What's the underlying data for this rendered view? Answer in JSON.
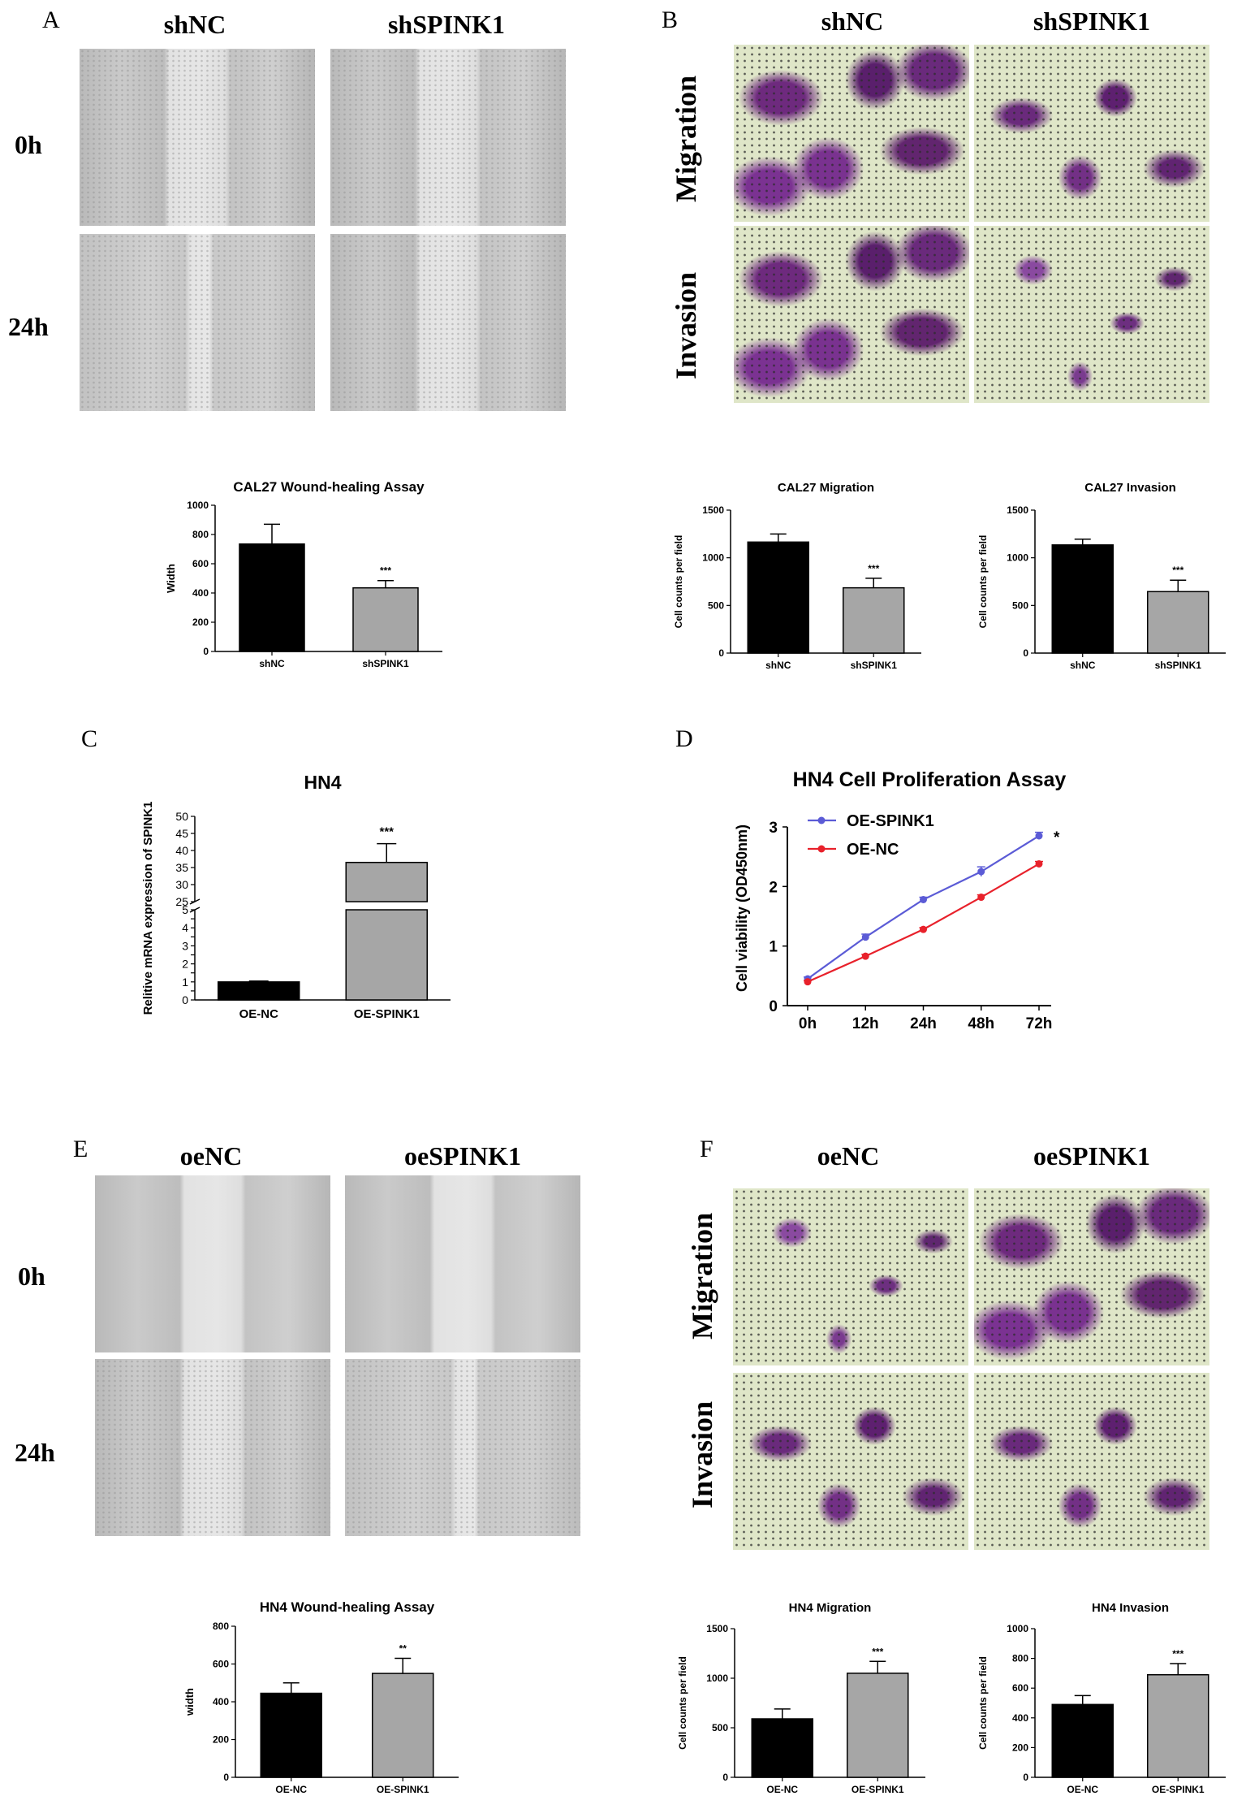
{
  "panels": {
    "A": {
      "letter": "A",
      "col1": "shNC",
      "col2": "shSPINK1",
      "row1": "0h",
      "row2": "24h"
    },
    "B": {
      "letter": "B",
      "col1": "shNC",
      "col2": "shSPINK1",
      "row1": "Migration",
      "row2": "Invasion"
    },
    "C": {
      "letter": "C"
    },
    "D": {
      "letter": "D"
    },
    "E": {
      "letter": "E",
      "col1": "oeNC",
      "col2": "oeSPINK1",
      "row1": "0h",
      "row2": "24h"
    },
    "F": {
      "letter": "F",
      "col1": "oeNC",
      "col2": "oeSPINK1",
      "row1": "Migration",
      "row2": "Invasion"
    }
  },
  "chart_data": [
    {
      "id": "cal27-wound",
      "type": "bar",
      "title": "CAL27 Wound-healing Assay",
      "ylabel": "Width",
      "categories": [
        "shNC",
        "shSPINK1"
      ],
      "values": [
        735,
        435
      ],
      "errors": [
        135,
        50
      ],
      "significance": [
        "",
        "***"
      ],
      "ylim": [
        0,
        1000
      ],
      "yticks": [
        0,
        200,
        400,
        600,
        800,
        1000
      ],
      "colors": [
        "#000000",
        "#a6a6a6"
      ]
    },
    {
      "id": "cal27-migration",
      "type": "bar",
      "title": "CAL27 Migration",
      "ylabel": "Cell counts per field",
      "categories": [
        "shNC",
        "shSPINK1"
      ],
      "values": [
        1165,
        685
      ],
      "errors": [
        85,
        100
      ],
      "significance": [
        "",
        "***"
      ],
      "ylim": [
        0,
        1500
      ],
      "yticks": [
        0,
        500,
        1000,
        1500
      ],
      "colors": [
        "#000000",
        "#a6a6a6"
      ]
    },
    {
      "id": "cal27-invasion",
      "type": "bar",
      "title": "CAL27 Invasion",
      "ylabel": "Cell counts per field",
      "categories": [
        "shNC",
        "shSPINK1"
      ],
      "values": [
        1135,
        645
      ],
      "errors": [
        60,
        120
      ],
      "significance": [
        "",
        "***"
      ],
      "ylim": [
        0,
        1500
      ],
      "yticks": [
        0,
        500,
        1000,
        1500
      ],
      "colors": [
        "#000000",
        "#a6a6a6"
      ]
    },
    {
      "id": "hn4-mrna",
      "type": "bar",
      "title": "HN4",
      "ylabel": "Relitive mRNA expression of SPINK1",
      "categories": [
        "OE-NC",
        "OE-SPINK1"
      ],
      "values": [
        1.0,
        36.5
      ],
      "errors": [
        0.05,
        5.5
      ],
      "significance": [
        "",
        "***"
      ],
      "axis_break": [
        5,
        25
      ],
      "ylim": [
        0,
        50
      ],
      "yticks_lower": [
        0,
        0.5,
        1,
        1.5,
        2,
        2.5,
        3,
        3.5,
        4,
        4.5,
        5
      ],
      "ytick_labels_lower": [
        "0",
        "",
        "1",
        "",
        "2",
        "",
        "3",
        "",
        "4",
        "",
        "5"
      ],
      "yticks_upper": [
        25,
        30,
        35,
        40,
        45,
        50
      ],
      "colors": [
        "#000000",
        "#a6a6a6"
      ]
    },
    {
      "id": "hn4-proliferation",
      "type": "line",
      "title": "HN4 Cell Proliferation Assay",
      "ylabel": "Cell viability (OD450nm)",
      "categories": [
        "0h",
        "12h",
        "24h",
        "48h",
        "72h"
      ],
      "series": [
        {
          "name": "OE-SPINK1",
          "values": [
            0.45,
            1.15,
            1.78,
            2.25,
            2.85
          ],
          "errors": [
            0.03,
            0.05,
            0.04,
            0.08,
            0.06
          ],
          "color": "#5b5bd6"
        },
        {
          "name": "OE-NC",
          "values": [
            0.4,
            0.83,
            1.28,
            1.82,
            2.38
          ],
          "errors": [
            0.02,
            0.03,
            0.03,
            0.04,
            0.04
          ],
          "color": "#e8212b"
        }
      ],
      "significance": "*",
      "ylim": [
        0,
        3
      ],
      "yticks": [
        0,
        1,
        2,
        3
      ],
      "legend": "top-left"
    },
    {
      "id": "hn4-wound",
      "type": "bar",
      "title": "HN4 Wound-healing Assay",
      "ylabel": "width",
      "categories": [
        "OE-NC",
        "OE-SPINK1"
      ],
      "values": [
        445,
        550
      ],
      "errors": [
        55,
        80
      ],
      "significance": [
        "",
        "**"
      ],
      "ylim": [
        0,
        800
      ],
      "yticks": [
        0,
        200,
        400,
        600,
        800
      ],
      "colors": [
        "#000000",
        "#a6a6a6"
      ]
    },
    {
      "id": "hn4-migration",
      "type": "bar",
      "title": "HN4 Migration",
      "ylabel": "Cell counts per field",
      "categories": [
        "OE-NC",
        "OE-SPINK1"
      ],
      "values": [
        590,
        1050
      ],
      "errors": [
        100,
        120
      ],
      "significance": [
        "",
        "***"
      ],
      "ylim": [
        0,
        1500
      ],
      "yticks": [
        0,
        500,
        1000,
        1500
      ],
      "colors": [
        "#000000",
        "#a6a6a6"
      ]
    },
    {
      "id": "hn4-invasion",
      "type": "bar",
      "title": "HN4 Invasion",
      "ylabel": "Cell counts per field",
      "categories": [
        "OE-NC",
        "OE-SPINK1"
      ],
      "values": [
        490,
        690
      ],
      "errors": [
        60,
        75
      ],
      "significance": [
        "",
        "***"
      ],
      "ylim": [
        0,
        1000
      ],
      "yticks": [
        0,
        200,
        400,
        600,
        800,
        1000
      ],
      "colors": [
        "#000000",
        "#a6a6a6"
      ]
    }
  ]
}
